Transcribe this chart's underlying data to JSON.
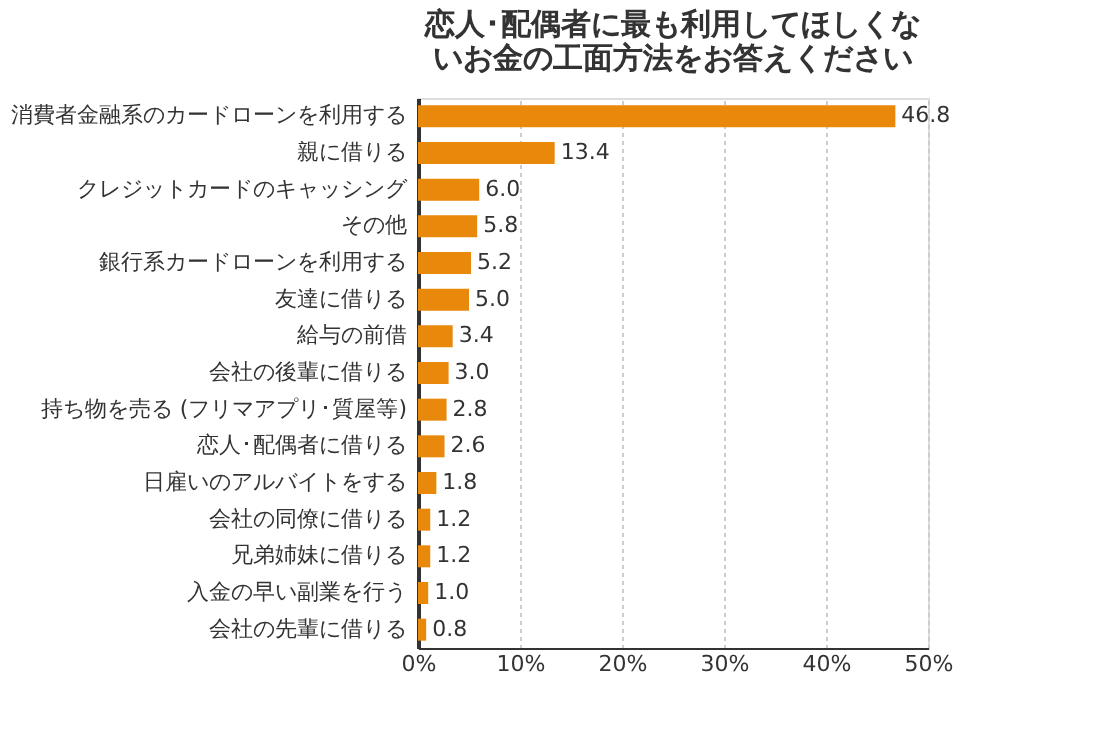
{
  "chart_data": {
    "type": "bar",
    "orientation": "horizontal",
    "title": "恋人･配偶者に最も利用してほしくないお金の工面方法をお答えください",
    "categories": [
      "消費者金融系のカードローンを利用する",
      "親に借りる",
      "クレジットカードのキャッシング",
      "その他",
      "銀行系カードローンを利用する",
      "友達に借りる",
      "給与の前借",
      "会社の後輩に借りる",
      "持ち物を売る (フリマアプリ･質屋等)",
      "恋人･配偶者に借りる",
      "日雇いのアルバイトをする",
      "会社の同僚に借りる",
      "兄弟姉妹に借りる",
      "入金の早い副業を行う",
      "会社の先輩に借りる"
    ],
    "values": [
      46.8,
      13.4,
      6.0,
      5.8,
      5.2,
      5.0,
      3.4,
      3.0,
      2.8,
      2.6,
      1.8,
      1.2,
      1.2,
      1.0,
      0.8
    ],
    "value_labels": [
      "46.8",
      "13.4",
      "6.0",
      "5.8",
      "5.2",
      "5.0",
      "3.4",
      "3.0",
      "2.8",
      "2.6",
      "1.8",
      "1.2",
      "1.2",
      "1.0",
      "0.8"
    ],
    "color": "#e8890c",
    "xlim": [
      0,
      50
    ],
    "xticks": [
      {
        "value": 0,
        "label": "0%"
      },
      {
        "value": 10,
        "label": "10%"
      },
      {
        "value": 20,
        "label": "20%"
      },
      {
        "value": 30,
        "label": "30%"
      },
      {
        "value": 40,
        "label": "40%"
      },
      {
        "value": 50,
        "label": "50%"
      }
    ],
    "grid": "x"
  }
}
